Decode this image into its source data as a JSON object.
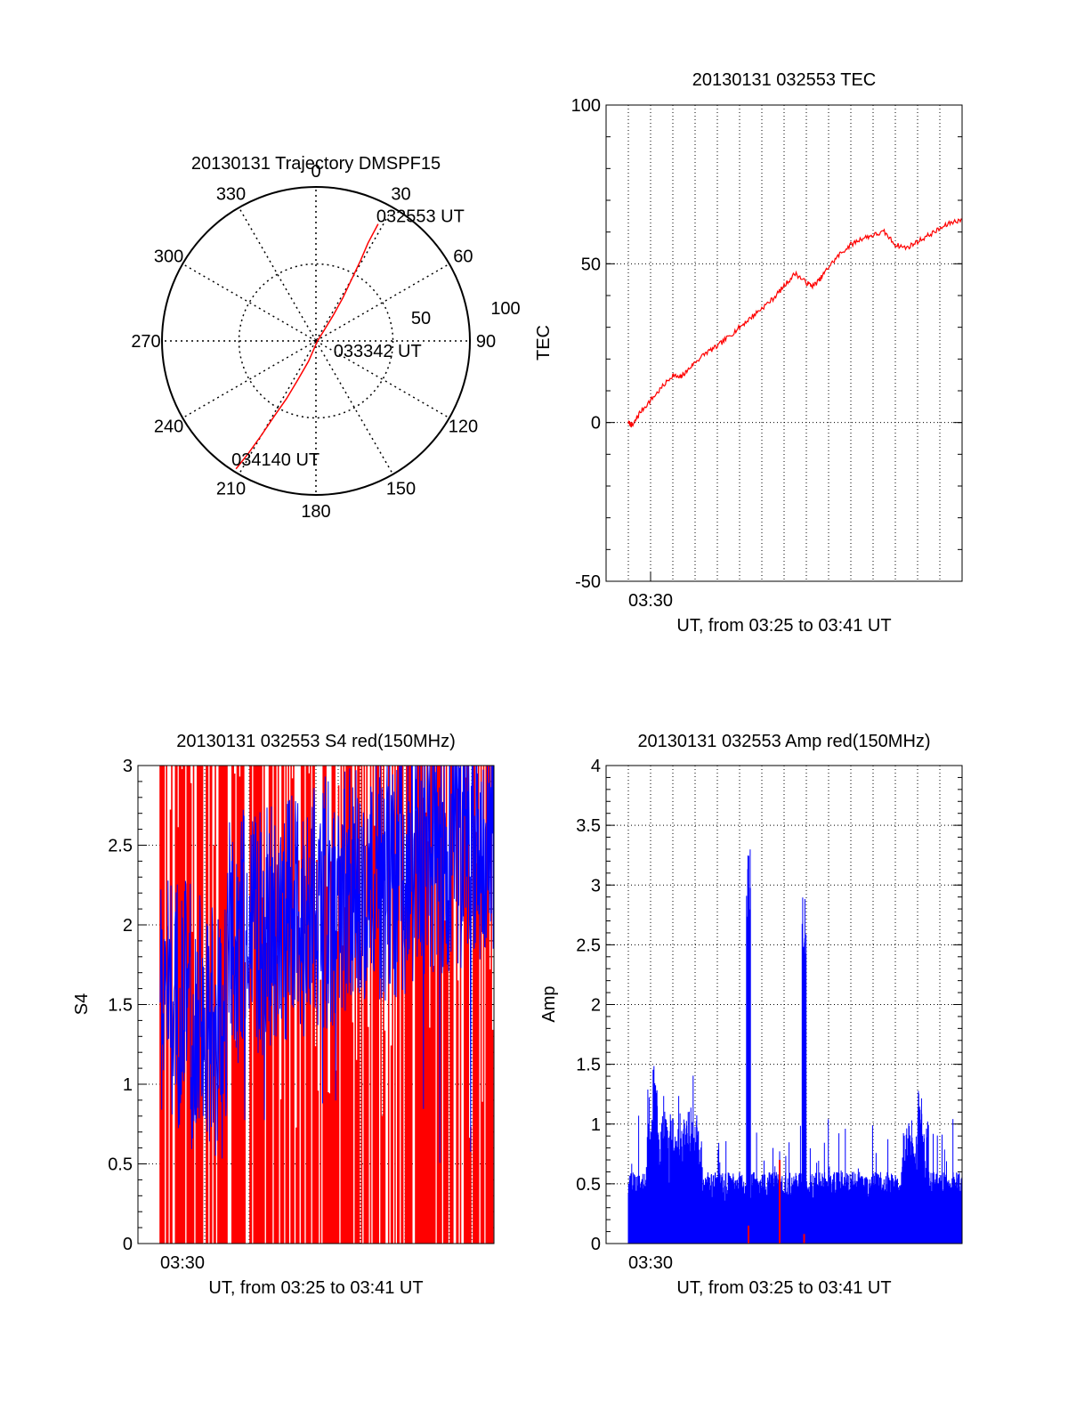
{
  "colors": {
    "red": "#ff0000",
    "blue": "#0000ff",
    "axis": "#000000",
    "grid": "#000000"
  },
  "chart_data": [
    {
      "id": "trajectory",
      "type": "polar-line",
      "title": "20130131 Trajectory DMSPF15",
      "angle_labels": [
        "0",
        "30",
        "60",
        "90",
        "120",
        "150",
        "180",
        "210",
        "240",
        "270",
        "300",
        "330"
      ],
      "radial_labels": [
        "50",
        "100"
      ],
      "radial_max": 100,
      "grid": true,
      "series": [
        {
          "color": "red",
          "points": [
            [
              28,
              86
            ],
            [
              28,
              72
            ],
            [
              29,
              60
            ],
            [
              30,
              47
            ],
            [
              32,
              33
            ],
            [
              34,
              20
            ],
            [
              38,
              8
            ],
            [
              90,
              1
            ],
            [
              200,
              14
            ],
            [
              205,
              28
            ],
            [
              207,
              42
            ],
            [
              209,
              56
            ],
            [
              210,
              70
            ],
            [
              211,
              85
            ],
            [
              212,
              98
            ]
          ]
        }
      ],
      "annotations": [
        {
          "text": "032553 UT",
          "at": [
            28,
            86
          ]
        },
        {
          "text": "033342 UT",
          "at": [
            90,
            1
          ]
        },
        {
          "text": "034140 UT",
          "at": [
            212,
            98
          ]
        }
      ]
    },
    {
      "id": "tec",
      "type": "line",
      "title": "20130131 032553 TEC",
      "xlabel": "UT, from 03:25 to 03:41 UT",
      "ylabel": "TEC",
      "ylim": [
        -50,
        100
      ],
      "yticks": [
        "-50",
        "0",
        "50",
        "100"
      ],
      "xlim_minutes": [
        3.0,
        19.0
      ],
      "xtick_labels": [
        {
          "label": "03:30",
          "minute": 5.0
        }
      ],
      "grid": true,
      "series": [
        {
          "color": "red",
          "x": [
            4.0,
            4.2,
            4.5,
            5.0,
            5.5,
            6.0,
            6.3,
            6.6,
            7.0,
            7.5,
            8.0,
            8.5,
            9.0,
            9.5,
            10.0,
            10.5,
            11.0,
            11.5,
            12.0,
            12.3,
            12.6,
            13.0,
            13.5,
            14.0,
            14.5,
            15.0,
            15.5,
            16.0,
            16.5,
            17.0,
            17.5,
            18.0,
            18.5,
            19.0
          ],
          "y": [
            0,
            -1,
            3,
            7,
            11,
            15,
            14,
            16,
            19,
            22,
            24,
            27,
            30,
            33,
            36,
            39,
            43,
            47,
            44,
            43,
            45,
            49,
            53,
            56,
            58,
            59,
            60,
            56,
            55,
            57,
            59,
            61,
            63,
            64
          ]
        }
      ]
    },
    {
      "id": "s4",
      "type": "line",
      "title": "20130131 032553 S4 red(150MHz)",
      "xlabel": "UT, from 03:25 to 03:41 UT",
      "ylabel": "S4",
      "ylim": [
        0,
        3
      ],
      "yticks": [
        "0",
        "0.5",
        "1",
        "1.5",
        "2",
        "2.5",
        "3"
      ],
      "xlim_minutes": [
        3.0,
        19.0
      ],
      "xtick_labels": [
        {
          "label": "03:30",
          "minute": 5.0
        }
      ],
      "grid": true,
      "series": [
        {
          "color": "red",
          "x_range_minutes": [
            4.0,
            19.0
          ],
          "range": [
            0,
            3
          ]
        },
        {
          "color": "blue",
          "x_range_minutes": [
            4.0,
            19.0
          ],
          "range": [
            0.5,
            3
          ]
        }
      ]
    },
    {
      "id": "amp",
      "type": "line",
      "title": "20130131 032553 Amp red(150MHz)",
      "xlabel": "UT, from 03:25 to 03:41 UT",
      "ylabel": "Amp",
      "ylim": [
        0,
        4
      ],
      "yticks": [
        "0",
        "0.5",
        "1",
        "1.5",
        "2",
        "2.5",
        "3",
        "3.5",
        "4"
      ],
      "xlim_minutes": [
        3.0,
        19.0
      ],
      "xtick_labels": [
        {
          "label": "03:30",
          "minute": 5.0
        }
      ],
      "grid": true,
      "series": [
        {
          "color": "blue",
          "x_range_minutes": [
            4.0,
            19.0
          ],
          "typical_peak": 0.6,
          "spikes": [
            {
              "minute": 9.4,
              "value": 3.3
            },
            {
              "minute": 11.9,
              "value": 2.9
            },
            {
              "minute": 5.2,
              "value": 1.5
            },
            {
              "minute": 17.1,
              "value": 1.3
            }
          ]
        },
        {
          "color": "red",
          "points": [
            {
              "minute": 9.4,
              "value": 0.15
            },
            {
              "minute": 10.8,
              "value": 0.7
            },
            {
              "minute": 11.9,
              "value": 0.08
            }
          ]
        }
      ]
    }
  ]
}
